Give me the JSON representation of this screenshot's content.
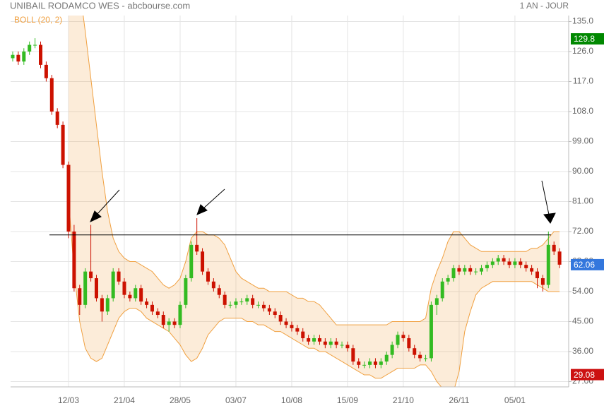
{
  "chart_data": {
    "type": "candlestick",
    "title": "UNIBAIL RODAMCO WES - abcbourse.com",
    "period": "1 AN - JOUR",
    "indicator": "BOLL (20, 2)",
    "up_color": "#33bb22",
    "down_color": "#cc1100",
    "band_color": "#f0a040",
    "grid": true,
    "categories": [
      null,
      null,
      null,
      null,
      null,
      null,
      null,
      null,
      null,
      null,
      "12/03",
      null,
      null,
      null,
      null,
      null,
      null,
      null,
      null,
      null,
      "21/04",
      null,
      null,
      null,
      null,
      null,
      null,
      null,
      null,
      null,
      "28/05",
      null,
      null,
      null,
      null,
      null,
      null,
      null,
      null,
      null,
      "03/07",
      null,
      null,
      null,
      null,
      null,
      null,
      null,
      null,
      null,
      "10/08",
      null,
      null,
      null,
      null,
      null,
      null,
      null,
      null,
      null,
      "15/09",
      null,
      null,
      null,
      null,
      null,
      null,
      null,
      null,
      null,
      "21/10",
      null,
      null,
      null,
      null,
      null,
      null,
      null,
      null,
      null,
      "26/11",
      null,
      null,
      null,
      null,
      null,
      null,
      null,
      null,
      null,
      "05/01",
      null,
      null,
      null,
      null,
      null,
      null,
      null,
      null
    ],
    "open": [
      124,
      125,
      123,
      126,
      128,
      128,
      122,
      118,
      108,
      104,
      92,
      72,
      55,
      50,
      60,
      58,
      52,
      48,
      52,
      60,
      57,
      53,
      52,
      55,
      51,
      50,
      48,
      47,
      44,
      45,
      44,
      50,
      58,
      68,
      66,
      60,
      57,
      55,
      53,
      50,
      50,
      51,
      51,
      52,
      50,
      50,
      49,
      48,
      47,
      45,
      44,
      43,
      42,
      40,
      39,
      40,
      39,
      38,
      39,
      38,
      38,
      37,
      33,
      32,
      32,
      33,
      32,
      33,
      35,
      38,
      41,
      40,
      37,
      35,
      34,
      34,
      50,
      52,
      57,
      58,
      61,
      60,
      61,
      60,
      60,
      61,
      62,
      63,
      64,
      63,
      62,
      63,
      62,
      61,
      60,
      58,
      56,
      68,
      66
    ],
    "high": [
      126,
      126,
      127,
      129,
      130,
      129,
      123,
      119,
      109,
      105,
      93,
      74,
      56,
      61,
      74,
      59,
      53,
      53,
      61,
      61,
      58,
      54,
      56,
      56,
      52,
      51,
      49,
      48,
      46,
      46,
      51,
      59,
      69,
      76,
      67,
      61,
      58,
      56,
      54,
      51,
      52,
      52,
      53,
      53,
      51,
      51,
      50,
      49,
      48,
      46,
      45,
      44,
      43,
      41,
      41,
      41,
      40,
      40,
      40,
      39,
      39,
      38,
      34,
      33,
      34,
      34,
      34,
      36,
      39,
      42,
      42,
      41,
      38,
      36,
      35,
      51,
      53,
      58,
      59,
      62,
      62,
      62,
      62,
      61,
      62,
      63,
      64,
      65,
      65,
      64,
      64,
      64,
      63,
      62,
      61,
      59,
      72,
      69,
      67
    ],
    "low": [
      123,
      122,
      122,
      125,
      127,
      121,
      117,
      107,
      103,
      91,
      70,
      54,
      47,
      49,
      57,
      51,
      45,
      47,
      51,
      56,
      52,
      51,
      51,
      50,
      49,
      47,
      46,
      43,
      42,
      43,
      43,
      49,
      57,
      65,
      59,
      56,
      54,
      52,
      49,
      49,
      49,
      50,
      50,
      49,
      49,
      48,
      47,
      46,
      44,
      43,
      42,
      41,
      39,
      38,
      38,
      38,
      37,
      37,
      37,
      37,
      36,
      32,
      31,
      31,
      31,
      31,
      31,
      32,
      34,
      37,
      39,
      36,
      34,
      33,
      33,
      33,
      47,
      51,
      56,
      57,
      59,
      59,
      59,
      59,
      59,
      60,
      61,
      62,
      62,
      61,
      61,
      61,
      60,
      59,
      55,
      54,
      55,
      65,
      61
    ],
    "close": [
      125,
      123,
      126,
      128,
      128,
      122,
      118,
      108,
      104,
      92,
      72,
      55,
      50,
      60,
      58,
      52,
      48,
      52,
      60,
      57,
      53,
      52,
      55,
      51,
      50,
      48,
      47,
      44,
      45,
      44,
      50,
      58,
      68,
      66,
      60,
      57,
      55,
      53,
      50,
      50,
      51,
      51,
      52,
      50,
      50,
      49,
      48,
      47,
      45,
      44,
      43,
      42,
      40,
      39,
      40,
      39,
      38,
      39,
      38,
      38,
      37,
      33,
      32,
      32,
      33,
      32,
      33,
      35,
      38,
      41,
      40,
      37,
      35,
      34,
      34,
      50,
      52,
      57,
      58,
      61,
      60,
      61,
      60,
      60,
      61,
      62,
      63,
      64,
      63,
      62,
      63,
      62,
      61,
      60,
      58,
      56,
      68,
      66,
      62.06
    ],
    "upper_band": [
      null,
      null,
      null,
      null,
      null,
      null,
      null,
      null,
      null,
      null,
      175,
      160,
      145,
      132,
      118,
      104,
      90,
      78,
      70,
      66,
      64,
      63,
      63,
      62,
      61,
      60,
      58,
      56,
      55,
      56,
      58,
      63,
      70,
      72,
      72,
      71,
      71,
      70,
      68,
      64,
      60,
      58,
      57,
      56,
      55,
      55,
      54,
      54,
      54,
      54,
      53,
      52,
      52,
      51,
      51,
      50,
      48,
      46,
      44,
      44,
      44,
      44,
      44,
      44,
      44,
      44,
      44,
      44,
      45,
      45,
      45,
      45,
      45,
      45,
      46,
      55,
      60,
      64,
      69,
      72,
      72,
      70,
      68,
      67,
      66,
      66,
      66,
      66,
      66,
      66,
      66,
      66,
      66,
      67,
      67,
      68,
      70,
      72,
      72
    ],
    "lower_band": [
      null,
      null,
      null,
      null,
      null,
      null,
      null,
      null,
      null,
      null,
      82,
      60,
      45,
      37,
      34,
      33,
      34,
      38,
      42,
      46,
      48,
      49,
      49,
      48,
      46,
      45,
      44,
      43,
      42,
      40,
      38,
      35,
      33,
      34,
      37,
      41,
      43,
      45,
      46,
      46,
      46,
      46,
      45,
      45,
      44,
      44,
      43,
      42,
      42,
      41,
      40,
      39,
      38,
      37,
      37,
      36,
      36,
      35,
      34,
      33,
      32,
      31,
      30,
      29,
      29,
      28,
      28,
      29,
      30,
      31,
      31,
      31,
      31,
      32,
      32,
      30,
      27,
      25,
      24,
      24,
      30,
      42,
      48,
      53,
      55,
      56,
      57,
      57,
      57,
      57,
      57,
      57,
      57,
      57,
      56,
      55,
      54,
      54,
      54
    ],
    "hlines": [
      71
    ],
    "markers": [
      {
        "value": 129.8,
        "color": "#008800"
      },
      {
        "value": 62.06,
        "color": "#3377dd"
      },
      {
        "value": 29.08,
        "color": "#cc1111"
      }
    ],
    "ylim": [
      25.4,
      136.8
    ],
    "yticks": [
      {
        "value": 27,
        "label": "27.00"
      },
      {
        "value": 36,
        "label": "36.00"
      },
      {
        "value": 45,
        "label": "45.00"
      },
      {
        "value": 54,
        "label": "54.00"
      },
      {
        "value": 63,
        "label": "63.00"
      },
      {
        "value": 72,
        "label": "72.00"
      },
      {
        "value": 81,
        "label": "81.00"
      },
      {
        "value": 90,
        "label": "90.00"
      },
      {
        "value": 99,
        "label": "99.00"
      },
      {
        "value": 108,
        "label": "108.0"
      },
      {
        "value": 117,
        "label": "117.0"
      },
      {
        "value": 126,
        "label": "126.0"
      },
      {
        "value": 135,
        "label": "135.0"
      }
    ]
  }
}
